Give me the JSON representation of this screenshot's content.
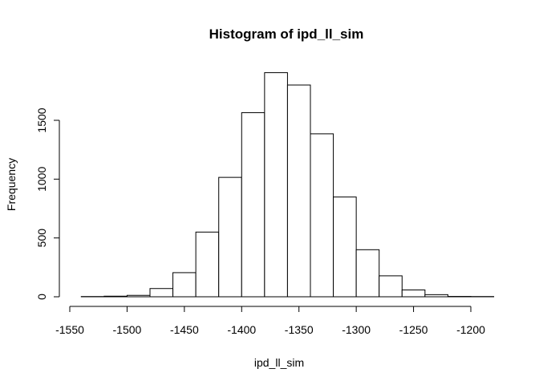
{
  "chart_data": {
    "type": "bar",
    "title": "Histogram of ipd_ll_sim",
    "xlabel": "ipd_ll_sim",
    "ylabel": "Frequency",
    "bin_width": 20,
    "bins": [
      {
        "x0": -1540,
        "x1": -1520,
        "count": 2
      },
      {
        "x0": -1520,
        "x1": -1500,
        "count": 5
      },
      {
        "x0": -1500,
        "x1": -1480,
        "count": 12
      },
      {
        "x0": -1480,
        "x1": -1460,
        "count": 70
      },
      {
        "x0": -1460,
        "x1": -1440,
        "count": 205
      },
      {
        "x0": -1440,
        "x1": -1420,
        "count": 550
      },
      {
        "x0": -1420,
        "x1": -1400,
        "count": 1015
      },
      {
        "x0": -1400,
        "x1": -1380,
        "count": 1565
      },
      {
        "x0": -1380,
        "x1": -1360,
        "count": 1905
      },
      {
        "x0": -1360,
        "x1": -1340,
        "count": 1800
      },
      {
        "x0": -1340,
        "x1": -1320,
        "count": 1385
      },
      {
        "x0": -1320,
        "x1": -1300,
        "count": 848
      },
      {
        "x0": -1300,
        "x1": -1280,
        "count": 400
      },
      {
        "x0": -1280,
        "x1": -1260,
        "count": 178
      },
      {
        "x0": -1260,
        "x1": -1240,
        "count": 58
      },
      {
        "x0": -1240,
        "x1": -1220,
        "count": 18
      },
      {
        "x0": -1220,
        "x1": -1200,
        "count": 3
      },
      {
        "x0": -1200,
        "x1": -1180,
        "count": 2
      }
    ],
    "xticks": [
      -1550,
      -1500,
      -1450,
      -1400,
      -1350,
      -1300,
      -1250,
      -1200
    ],
    "yticks": [
      0,
      500,
      1000,
      1500
    ],
    "xtick_labels": [
      "-1550",
      "-1500",
      "-1450",
      "-1400",
      "-1350",
      "-1300",
      "-1250",
      "-1200"
    ],
    "ytick_labels": [
      "0",
      "500",
      "1000",
      "1500"
    ],
    "xlim": [
      -1550,
      -1180
    ],
    "ylim": [
      0,
      1905
    ],
    "grid": false,
    "legend": "none",
    "colors": {
      "bar_fill": "#ffffff",
      "bar_stroke": "#000000",
      "axis": "#000000"
    }
  }
}
